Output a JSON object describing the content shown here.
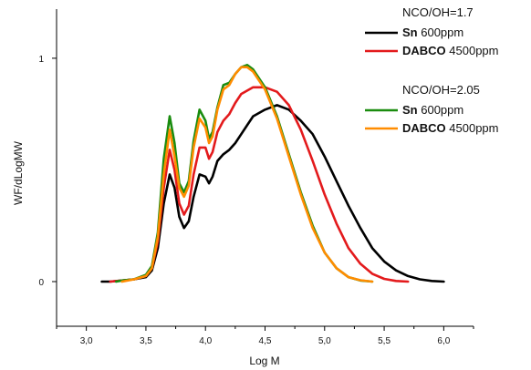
{
  "chart_data": {
    "type": "line",
    "xlabel": "Log M",
    "ylabel": "WF/dLogMW",
    "xlim": [
      2.75,
      6.25
    ],
    "ylim": [
      -0.2,
      1.22
    ],
    "xticks": [
      "3,0",
      "3,5",
      "4,0",
      "4,5",
      "5,0",
      "5,5",
      "6,0"
    ],
    "xtick_values": [
      3.0,
      3.5,
      4.0,
      4.5,
      5.0,
      5.5,
      6.0
    ],
    "yticks": [
      "0",
      "1"
    ],
    "ytick_values": [
      0,
      1
    ],
    "legend_groups": [
      {
        "header": "NCO/OH=1.7"
      },
      {
        "header": "NCO/OH=2.05"
      }
    ],
    "series": [
      {
        "key": "sn-17",
        "group": 0,
        "catalyst": "Sn",
        "conc": "600ppm",
        "color": "#000000",
        "points": [
          [
            3.13,
            0.0
          ],
          [
            3.2,
            0.0
          ],
          [
            3.3,
            0.005
          ],
          [
            3.4,
            0.01
          ],
          [
            3.5,
            0.02
          ],
          [
            3.55,
            0.05
          ],
          [
            3.6,
            0.15
          ],
          [
            3.65,
            0.35
          ],
          [
            3.7,
            0.48
          ],
          [
            3.74,
            0.42
          ],
          [
            3.78,
            0.29
          ],
          [
            3.82,
            0.24
          ],
          [
            3.86,
            0.27
          ],
          [
            3.9,
            0.38
          ],
          [
            3.95,
            0.48
          ],
          [
            4.0,
            0.47
          ],
          [
            4.03,
            0.44
          ],
          [
            4.06,
            0.47
          ],
          [
            4.1,
            0.54
          ],
          [
            4.15,
            0.57
          ],
          [
            4.2,
            0.59
          ],
          [
            4.25,
            0.62
          ],
          [
            4.3,
            0.66
          ],
          [
            4.35,
            0.7
          ],
          [
            4.4,
            0.74
          ],
          [
            4.5,
            0.77
          ],
          [
            4.6,
            0.79
          ],
          [
            4.7,
            0.77
          ],
          [
            4.8,
            0.72
          ],
          [
            4.9,
            0.66
          ],
          [
            5.0,
            0.56
          ],
          [
            5.1,
            0.45
          ],
          [
            5.2,
            0.34
          ],
          [
            5.3,
            0.24
          ],
          [
            5.4,
            0.15
          ],
          [
            5.5,
            0.09
          ],
          [
            5.6,
            0.05
          ],
          [
            5.7,
            0.025
          ],
          [
            5.8,
            0.01
          ],
          [
            5.9,
            0.003
          ],
          [
            6.0,
            0.0
          ]
        ]
      },
      {
        "key": "dabco-17",
        "group": 0,
        "catalyst": "DABCO",
        "conc": "4500ppm",
        "color": "#e31a1c",
        "points": [
          [
            3.2,
            0.0
          ],
          [
            3.3,
            0.005
          ],
          [
            3.4,
            0.01
          ],
          [
            3.5,
            0.025
          ],
          [
            3.55,
            0.06
          ],
          [
            3.6,
            0.18
          ],
          [
            3.65,
            0.42
          ],
          [
            3.7,
            0.59
          ],
          [
            3.74,
            0.5
          ],
          [
            3.78,
            0.35
          ],
          [
            3.82,
            0.3
          ],
          [
            3.86,
            0.34
          ],
          [
            3.9,
            0.48
          ],
          [
            3.95,
            0.6
          ],
          [
            4.0,
            0.6
          ],
          [
            4.03,
            0.55
          ],
          [
            4.06,
            0.58
          ],
          [
            4.1,
            0.67
          ],
          [
            4.15,
            0.72
          ],
          [
            4.2,
            0.75
          ],
          [
            4.25,
            0.8
          ],
          [
            4.3,
            0.84
          ],
          [
            4.4,
            0.87
          ],
          [
            4.5,
            0.87
          ],
          [
            4.6,
            0.85
          ],
          [
            4.7,
            0.79
          ],
          [
            4.8,
            0.68
          ],
          [
            4.9,
            0.54
          ],
          [
            5.0,
            0.39
          ],
          [
            5.1,
            0.26
          ],
          [
            5.2,
            0.15
          ],
          [
            5.3,
            0.08
          ],
          [
            5.4,
            0.035
          ],
          [
            5.5,
            0.012
          ],
          [
            5.6,
            0.003
          ],
          [
            5.7,
            0.0
          ]
        ]
      },
      {
        "key": "sn-205",
        "group": 1,
        "catalyst": "Sn",
        "conc": "600ppm",
        "color": "#1a8c0f",
        "points": [
          [
            3.25,
            0.0
          ],
          [
            3.3,
            0.005
          ],
          [
            3.4,
            0.01
          ],
          [
            3.5,
            0.03
          ],
          [
            3.55,
            0.07
          ],
          [
            3.6,
            0.22
          ],
          [
            3.65,
            0.55
          ],
          [
            3.7,
            0.74
          ],
          [
            3.74,
            0.62
          ],
          [
            3.78,
            0.44
          ],
          [
            3.82,
            0.4
          ],
          [
            3.86,
            0.45
          ],
          [
            3.9,
            0.63
          ],
          [
            3.95,
            0.77
          ],
          [
            4.0,
            0.72
          ],
          [
            4.03,
            0.64
          ],
          [
            4.06,
            0.67
          ],
          [
            4.1,
            0.78
          ],
          [
            4.15,
            0.88
          ],
          [
            4.2,
            0.89
          ],
          [
            4.25,
            0.93
          ],
          [
            4.3,
            0.96
          ],
          [
            4.35,
            0.97
          ],
          [
            4.4,
            0.95
          ],
          [
            4.5,
            0.87
          ],
          [
            4.6,
            0.74
          ],
          [
            4.7,
            0.57
          ],
          [
            4.8,
            0.4
          ],
          [
            4.9,
            0.25
          ],
          [
            5.0,
            0.13
          ],
          [
            5.1,
            0.06
          ],
          [
            5.2,
            0.02
          ],
          [
            5.3,
            0.005
          ],
          [
            5.4,
            0.0
          ]
        ]
      },
      {
        "key": "dabco-205",
        "group": 1,
        "catalyst": "DABCO",
        "conc": "4500ppm",
        "color": "#ff8c00",
        "points": [
          [
            3.3,
            0.0
          ],
          [
            3.4,
            0.01
          ],
          [
            3.5,
            0.025
          ],
          [
            3.55,
            0.06
          ],
          [
            3.6,
            0.2
          ],
          [
            3.65,
            0.48
          ],
          [
            3.7,
            0.68
          ],
          [
            3.74,
            0.56
          ],
          [
            3.78,
            0.42
          ],
          [
            3.82,
            0.38
          ],
          [
            3.86,
            0.43
          ],
          [
            3.9,
            0.6
          ],
          [
            3.95,
            0.73
          ],
          [
            4.0,
            0.69
          ],
          [
            4.03,
            0.62
          ],
          [
            4.06,
            0.65
          ],
          [
            4.1,
            0.77
          ],
          [
            4.15,
            0.86
          ],
          [
            4.2,
            0.88
          ],
          [
            4.25,
            0.93
          ],
          [
            4.3,
            0.96
          ],
          [
            4.35,
            0.96
          ],
          [
            4.4,
            0.94
          ],
          [
            4.5,
            0.86
          ],
          [
            4.6,
            0.73
          ],
          [
            4.7,
            0.56
          ],
          [
            4.8,
            0.39
          ],
          [
            4.9,
            0.24
          ],
          [
            5.0,
            0.13
          ],
          [
            5.1,
            0.06
          ],
          [
            5.2,
            0.02
          ],
          [
            5.3,
            0.006
          ],
          [
            5.4,
            0.0
          ]
        ]
      }
    ]
  }
}
